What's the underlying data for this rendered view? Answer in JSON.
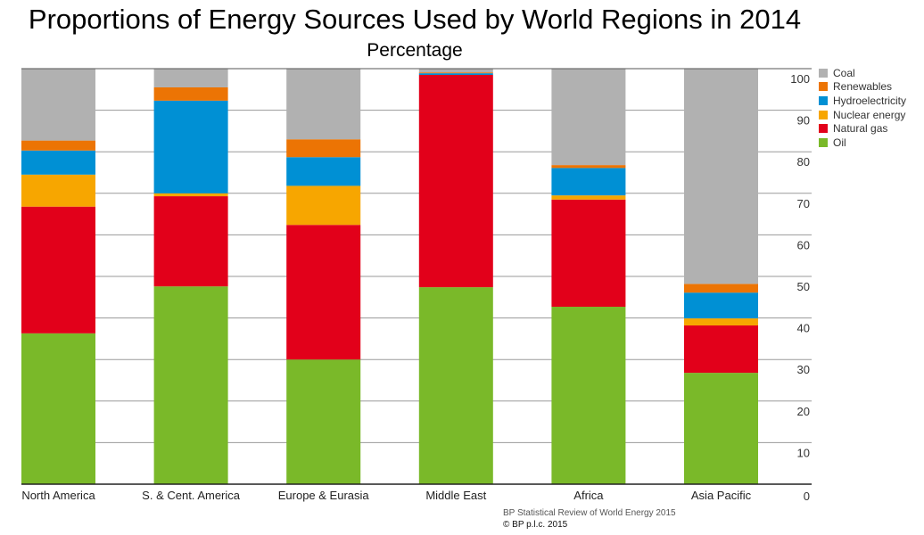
{
  "chart_data": {
    "type": "bar",
    "stacked": true,
    "title": "Proportions of Energy Sources Used by World Regions in 2014",
    "subtitle": "Percentage",
    "xlabel": "",
    "ylabel": "",
    "ylim": [
      0,
      100
    ],
    "yticks": [
      "0",
      "10",
      "20",
      "30",
      "40",
      "50",
      "60",
      "70",
      "80",
      "90",
      "100"
    ],
    "grid": true,
    "legend_position": "top-right",
    "categories": [
      "North America",
      "S. & Cent. America",
      "Europe & Eurasia",
      "Middle East",
      "Africa",
      "Asia Pacific"
    ],
    "series": [
      {
        "name": "Oil",
        "color": "#7ab929",
        "values": [
          36.3,
          47.6,
          30.0,
          47.4,
          42.7,
          26.8
        ]
      },
      {
        "name": "Natural gas",
        "color": "#e2001a",
        "values": [
          30.5,
          21.7,
          32.4,
          51.1,
          25.8,
          11.4
        ]
      },
      {
        "name": "Nuclear energy",
        "color": "#f7a600",
        "values": [
          7.7,
          0.7,
          9.4,
          0.0,
          1.0,
          1.7
        ]
      },
      {
        "name": "Hydroelectricity",
        "color": "#0090d4",
        "values": [
          5.8,
          22.3,
          6.9,
          0.4,
          6.6,
          6.2
        ]
      },
      {
        "name": "Renewables",
        "color": "#ec7404",
        "values": [
          2.4,
          3.2,
          4.3,
          0.2,
          0.7,
          2.1
        ]
      },
      {
        "name": "Coal",
        "color": "#b1b1b1",
        "values": [
          17.3,
          4.5,
          17.0,
          0.9,
          23.2,
          51.8
        ]
      }
    ],
    "legend_order": [
      "Coal",
      "Renewables",
      "Hydroelectricity",
      "Nuclear energy",
      "Natural gas",
      "Oil"
    ]
  },
  "source": {
    "line1": "BP Statistical Review of World Energy 2015",
    "line2": "© BP p.l.c. 2015"
  }
}
